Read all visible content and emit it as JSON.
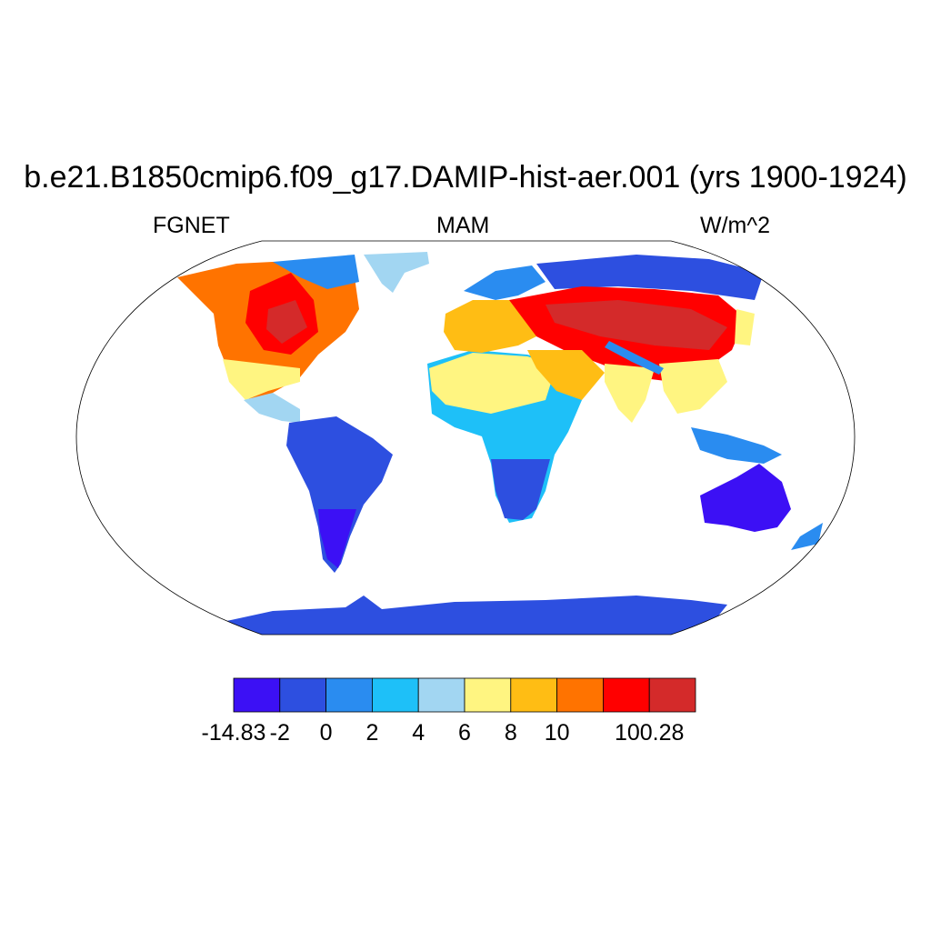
{
  "title": "b.e21.B1850cmip6.f09_g17.DAMIP-hist-aer.001 (yrs 1900-1924)",
  "left_string": "FGNET",
  "center_string": "MAM",
  "right_string": "W/m^2",
  "map": {
    "projection": "Robinson",
    "field": "FGNET",
    "season": "MAM",
    "units": "W/m^2",
    "ocean_masked": true
  },
  "colorbar": {
    "orientation": "horizontal",
    "colors": [
      "#3c10f5",
      "#2d4fe0",
      "#2a8cf0",
      "#1ec0f8",
      "#a2d6f2",
      "#fff581",
      "#ffbd14",
      "#ff7300",
      "#ff0000",
      "#d42a2a"
    ],
    "labels": [
      "-14.83",
      "-2",
      "0",
      "2",
      "4",
      "6",
      "8",
      "10",
      "100.28"
    ],
    "label_after_box": [
      0,
      1,
      2,
      3,
      4,
      5,
      6,
      7,
      9
    ]
  }
}
